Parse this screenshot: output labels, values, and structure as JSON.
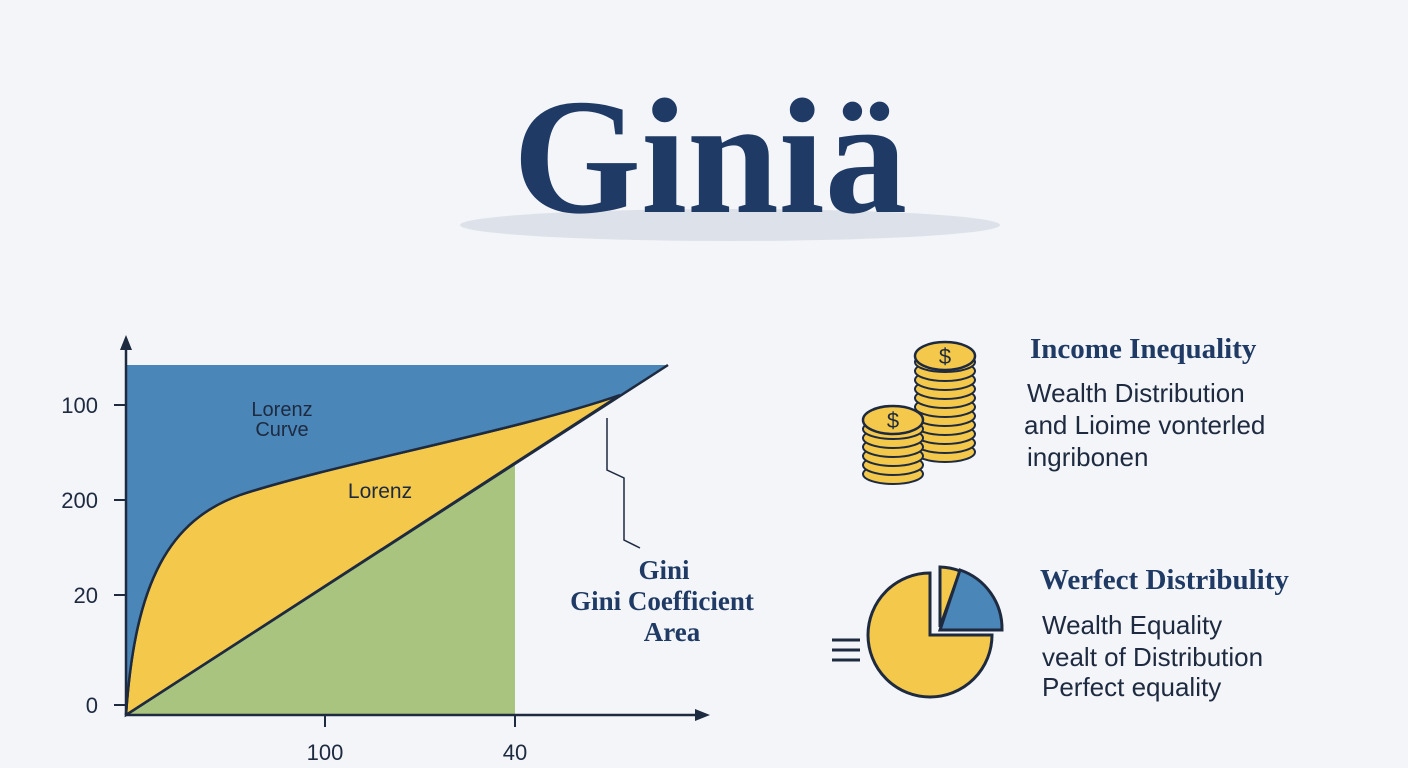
{
  "title": "Giniä",
  "chart": {
    "y_labels": [
      "100",
      "200",
      "20",
      "0"
    ],
    "x_labels": [
      "100",
      "40"
    ],
    "labels": {
      "lorenz_curve": [
        "Lorenz",
        "Curve"
      ],
      "lorenz": "Lorenz",
      "gini": [
        "Gini",
        "Gini Coefficient",
        "Area"
      ]
    }
  },
  "panels": [
    {
      "heading": "Income Inequality",
      "lines": [
        "Wealth Distribution",
        "and Lioime vonterled",
        "ingribonen"
      ]
    },
    {
      "heading": "Werfect Distribulity",
      "lines": [
        "Wealth Equality",
        "vealt of Distribution",
        "Perfect equality"
      ]
    }
  ]
}
